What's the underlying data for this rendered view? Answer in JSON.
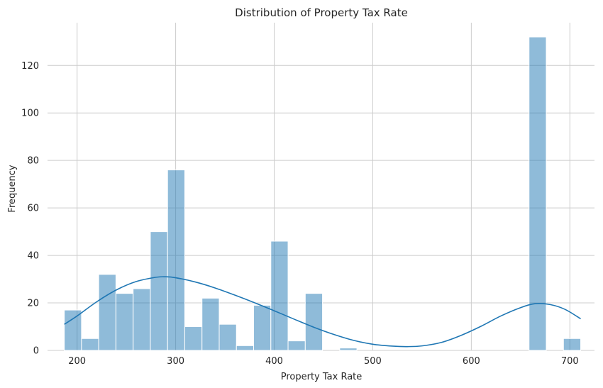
{
  "chart_data": {
    "type": "bar",
    "title": "Distribution of Property Tax Rate",
    "xlabel": "Property Tax Rate",
    "ylabel": "Frequency",
    "xlim": [
      170,
      725
    ],
    "ylim": [
      0,
      138
    ],
    "xticks": [
      200,
      300,
      400,
      500,
      600,
      700
    ],
    "yticks": [
      0,
      20,
      40,
      60,
      80,
      100,
      120
    ],
    "grid": true,
    "bar_color": "#1f77b4",
    "bar_opacity": 0.5,
    "kde_color": "#1f77b4",
    "bin_edges": [
      187,
      204.47,
      221.93,
      239.4,
      256.87,
      274.33,
      291.8,
      309.27,
      326.73,
      344.2,
      361.67,
      379.13,
      396.6,
      414.07,
      431.53,
      449,
      466.47,
      483.93,
      501.4,
      518.87,
      536.33,
      553.8,
      571.27,
      588.73,
      606.2,
      623.67,
      641.13,
      658.6,
      676.07,
      693.53,
      711
    ],
    "counts": [
      17,
      5,
      32,
      24,
      26,
      50,
      76,
      10,
      22,
      11,
      2,
      19,
      46,
      4,
      24,
      0,
      1,
      0,
      0,
      0,
      0,
      0,
      0,
      0,
      0,
      0,
      0,
      132,
      0,
      5
    ],
    "kde": {
      "x": [
        187,
        200,
        220,
        240,
        260,
        280,
        290,
        300,
        320,
        340,
        360,
        380,
        400,
        420,
        440,
        460,
        480,
        500,
        520,
        535,
        550,
        570,
        590,
        610,
        630,
        650,
        665,
        680,
        695,
        711
      ],
      "y": [
        11,
        14.5,
        20.5,
        25.5,
        29,
        30.8,
        31,
        30.6,
        28.8,
        26.3,
        23.3,
        20.1,
        16.7,
        13.2,
        9.8,
        6.8,
        4.3,
        2.6,
        1.8,
        1.6,
        1.9,
        3.4,
        6.4,
        10.2,
        14.5,
        18,
        19.7,
        19.3,
        17.3,
        13.3
      ]
    }
  }
}
